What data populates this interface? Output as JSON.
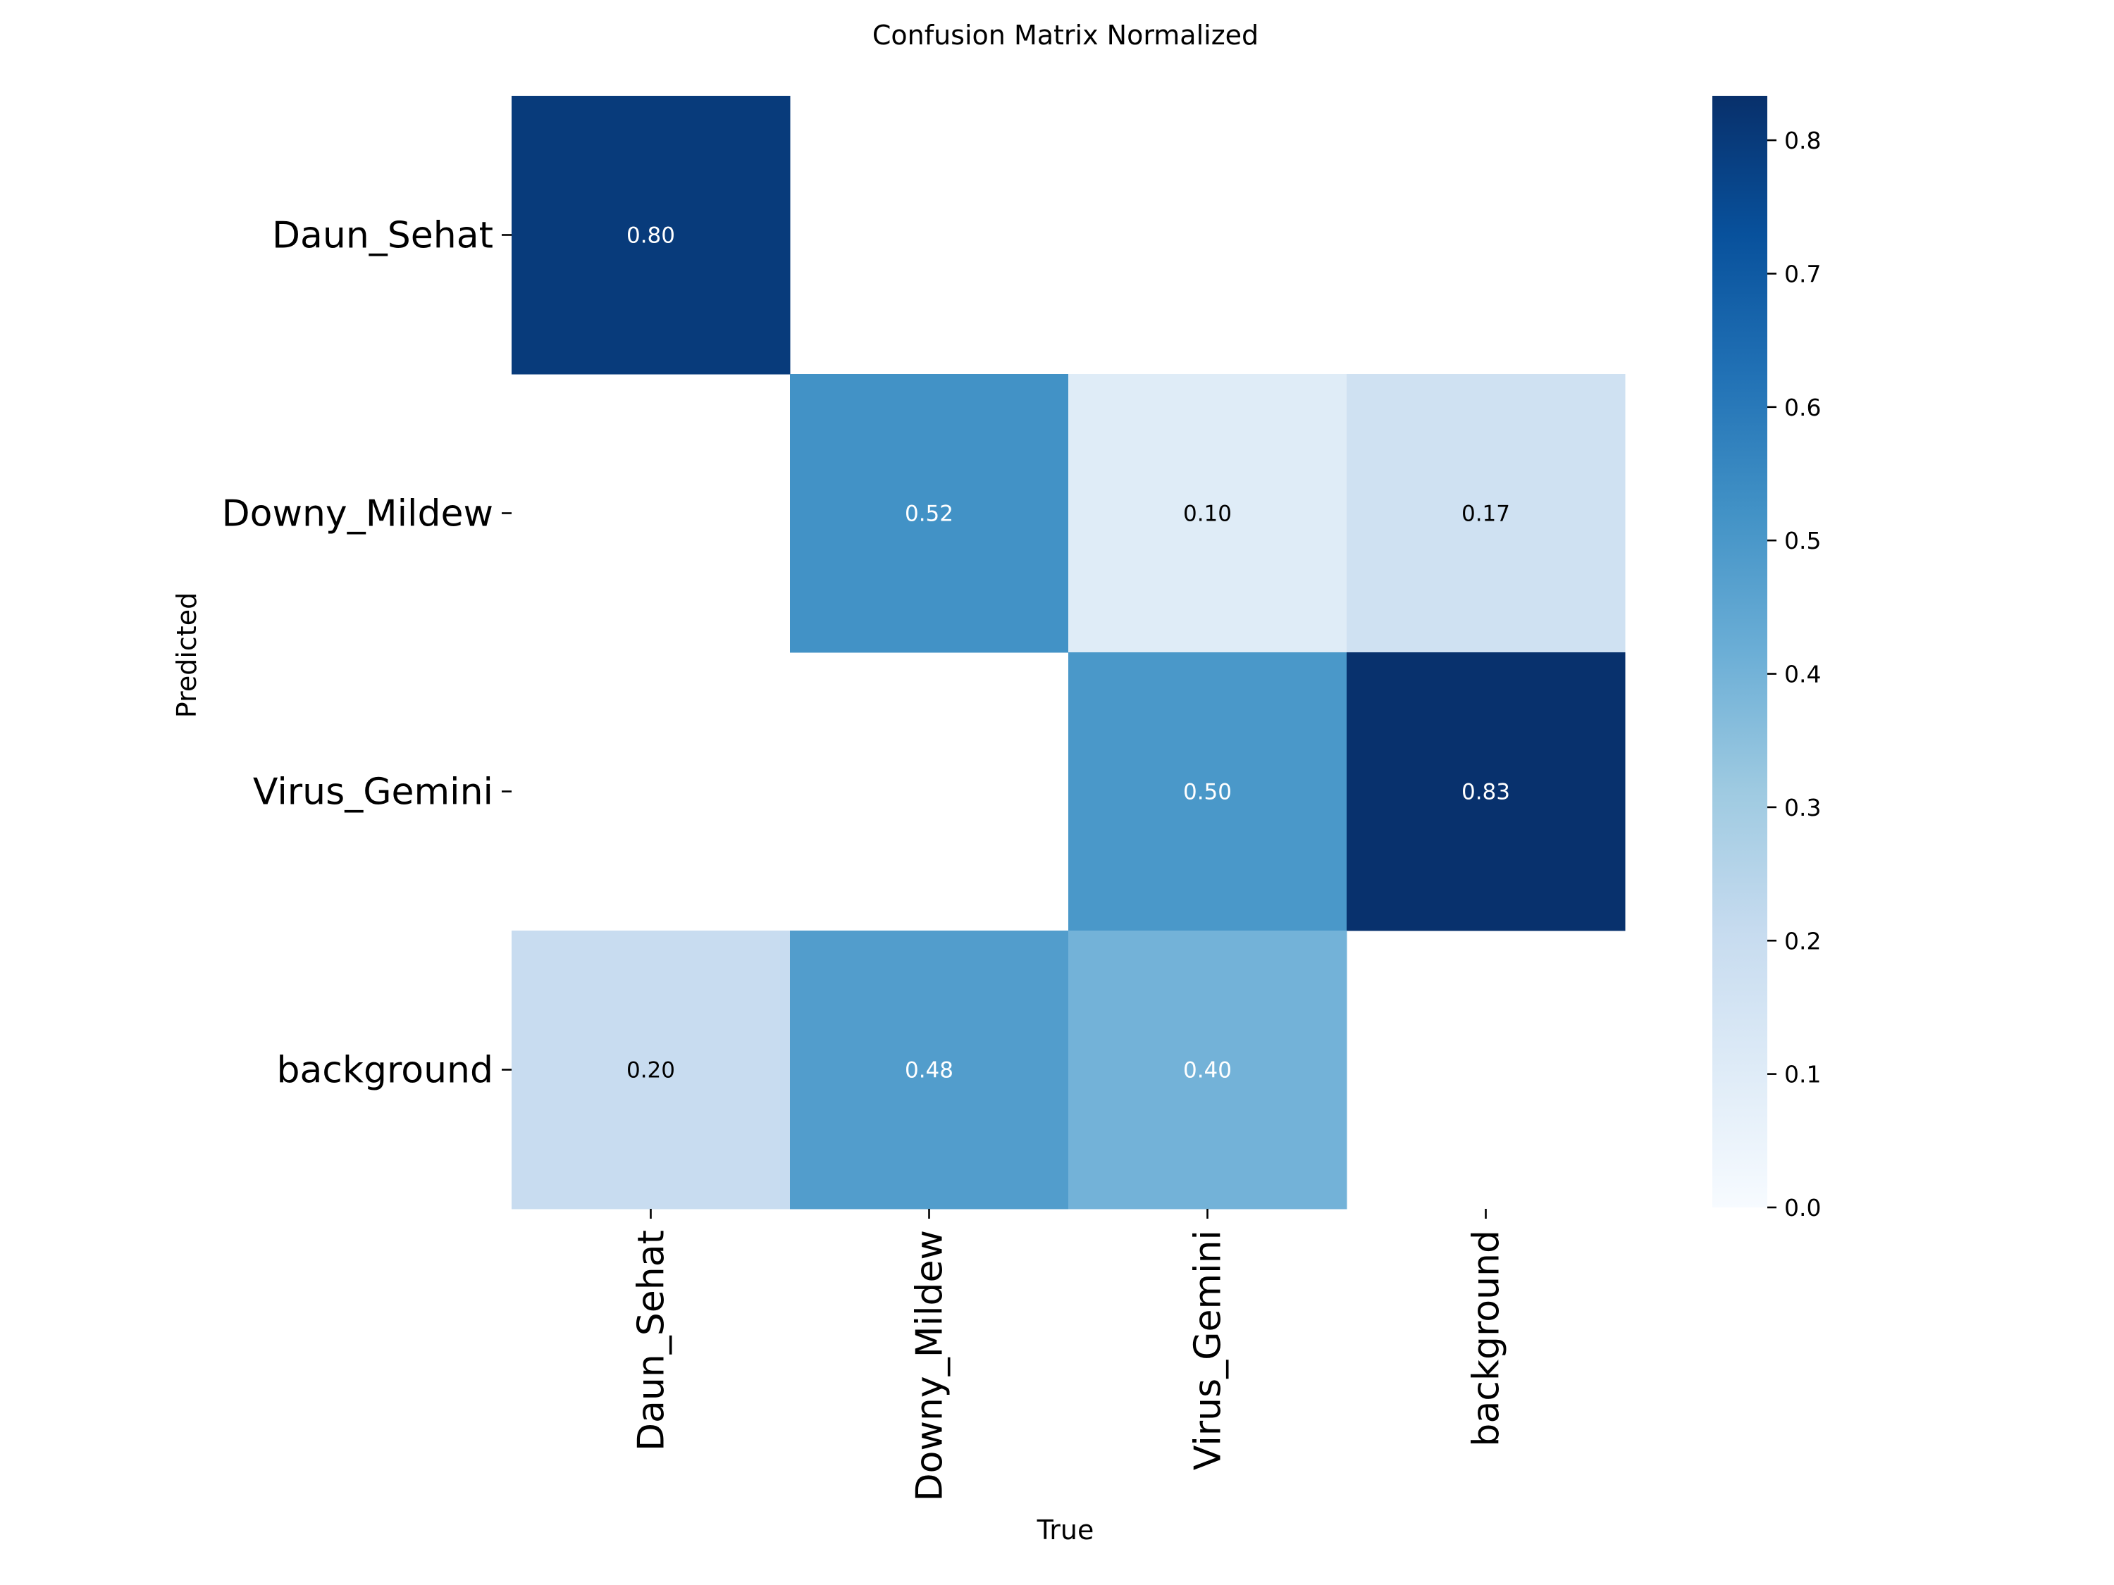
{
  "chart_data": {
    "type": "heatmap",
    "title": "Confusion Matrix Normalized",
    "xlabel": "True",
    "ylabel": "Predicted",
    "x_categories": [
      "Daun_Sehat",
      "Downy_Mildew",
      "Virus_Gemini",
      "background"
    ],
    "y_categories": [
      "Daun_Sehat",
      "Downy_Mildew",
      "Virus_Gemini",
      "background"
    ],
    "values": [
      [
        0.8,
        null,
        null,
        null
      ],
      [
        null,
        0.52,
        0.1,
        0.17
      ],
      [
        null,
        null,
        0.5,
        0.83
      ],
      [
        0.2,
        0.48,
        0.4,
        null
      ]
    ],
    "colormap": "Blues",
    "colorbar": {
      "range": [
        0.0,
        0.8333
      ],
      "ticks": [
        0.0,
        0.1,
        0.2,
        0.3,
        0.4,
        0.5,
        0.6,
        0.7,
        0.8
      ],
      "tick_labels": [
        "0.0",
        "0.1",
        "0.2",
        "0.3",
        "0.4",
        "0.5",
        "0.6",
        "0.7",
        "0.8"
      ]
    },
    "empty_cells": "blank",
    "grid": false
  }
}
